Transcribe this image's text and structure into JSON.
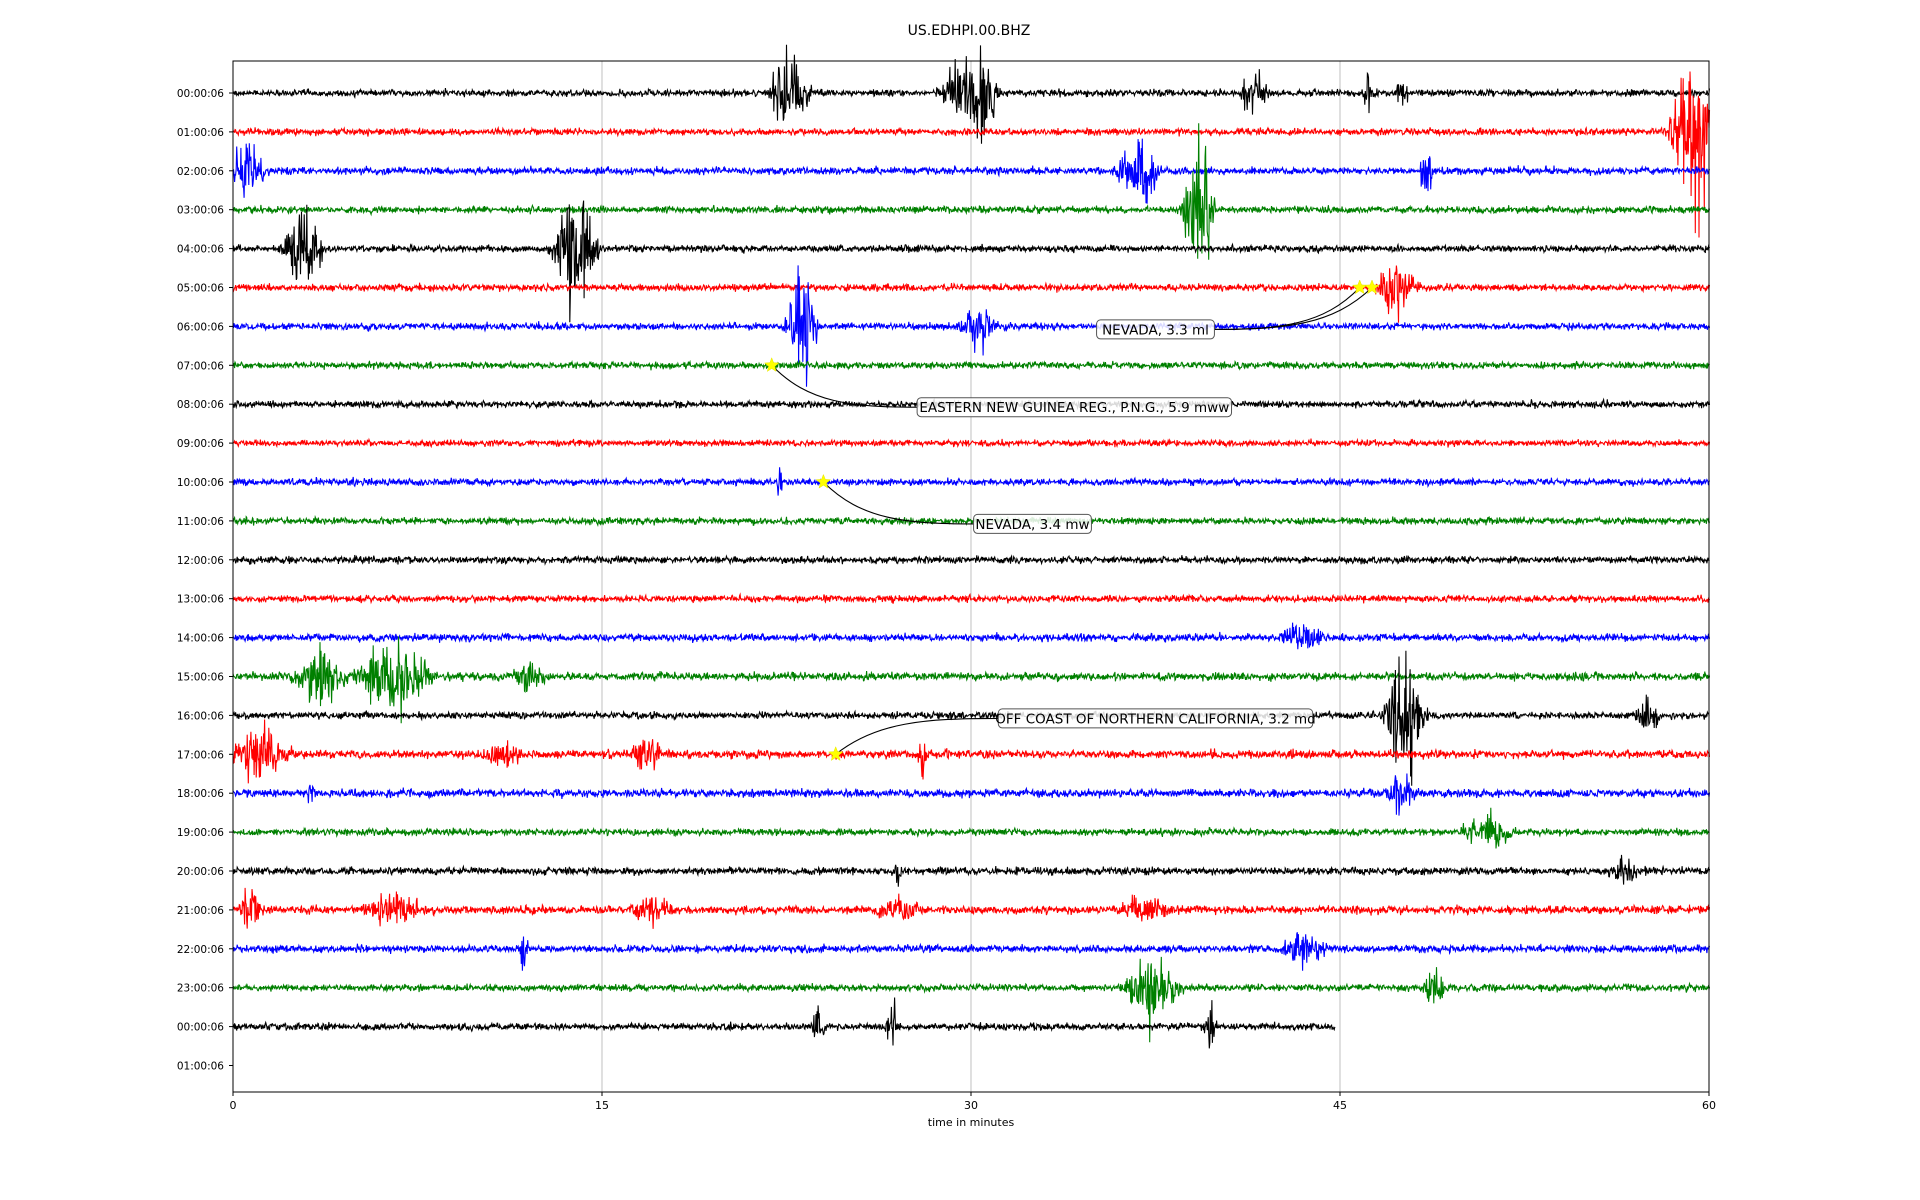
{
  "chart_data": {
    "type": "line",
    "title": "US.EDHPI.00.BHZ",
    "xlabel": "time in minutes",
    "xlim": [
      0,
      60
    ],
    "x_ticks": [
      "0",
      "15",
      "30",
      "45",
      "60"
    ],
    "grid": "vertical lines at 15, 30, 45",
    "colors": [
      "#000000",
      "#ff0000",
      "#0000ff",
      "#008000"
    ],
    "row_labels": [
      "00:00:06",
      "01:00:06",
      "02:00:06",
      "03:00:06",
      "04:00:06",
      "05:00:06",
      "06:00:06",
      "07:00:06",
      "08:00:06",
      "09:00:06",
      "10:00:06",
      "11:00:06",
      "12:00:06",
      "13:00:06",
      "14:00:06",
      "15:00:06",
      "16:00:06",
      "17:00:06",
      "18:00:06",
      "19:00:06",
      "20:00:06",
      "21:00:06",
      "22:00:06",
      "23:00:06",
      "00:00:06",
      "01:00:06"
    ],
    "traces": [
      {
        "row": 0,
        "end_minute": 60,
        "noise": 1.0,
        "bursts": [
          [
            22.6,
            1.2,
            4
          ],
          [
            29.8,
            1.5,
            3.5
          ],
          [
            30.5,
            0.8,
            5
          ],
          [
            41.5,
            0.8,
            2.5
          ],
          [
            46.2,
            0.4,
            2.5
          ],
          [
            47.5,
            0.4,
            2
          ]
        ]
      },
      {
        "row": 1,
        "end_minute": 60,
        "noise": 1.0,
        "bursts": [
          [
            59.4,
            1.2,
            9
          ]
        ]
      },
      {
        "row": 2,
        "end_minute": 60,
        "noise": 1.1,
        "bursts": [
          [
            0.5,
            1.2,
            3
          ],
          [
            36.8,
            1.2,
            4
          ],
          [
            48.5,
            0.4,
            3
          ]
        ]
      },
      {
        "row": 3,
        "end_minute": 60,
        "noise": 1.0,
        "bursts": [
          [
            39.2,
            0.8,
            9
          ]
        ]
      },
      {
        "row": 4,
        "end_minute": 60,
        "noise": 1.0,
        "bursts": [
          [
            2.8,
            1.0,
            6
          ],
          [
            13.9,
            1.2,
            7
          ],
          [
            14.0,
            0.15,
            9
          ]
        ]
      },
      {
        "row": 5,
        "end_minute": 60,
        "noise": 1.0,
        "bursts": [
          [
            47.3,
            1.2,
            3
          ]
        ]
      },
      {
        "row": 6,
        "end_minute": 60,
        "noise": 1.0,
        "bursts": [
          [
            23.1,
            0.8,
            7
          ],
          [
            30.3,
            1.0,
            3
          ]
        ]
      },
      {
        "row": 7,
        "end_minute": 60,
        "noise": 1.0,
        "bursts": []
      },
      {
        "row": 8,
        "end_minute": 60,
        "noise": 1.0,
        "bursts": []
      },
      {
        "row": 9,
        "end_minute": 60,
        "noise": 0.9,
        "bursts": []
      },
      {
        "row": 10,
        "end_minute": 60,
        "noise": 1.0,
        "bursts": [
          [
            22.2,
            0.2,
            2
          ]
        ]
      },
      {
        "row": 11,
        "end_minute": 60,
        "noise": 1.0,
        "bursts": []
      },
      {
        "row": 12,
        "end_minute": 60,
        "noise": 1.0,
        "bursts": []
      },
      {
        "row": 13,
        "end_minute": 60,
        "noise": 1.0,
        "bursts": []
      },
      {
        "row": 14,
        "end_minute": 60,
        "noise": 1.1,
        "bursts": [
          [
            43.5,
            1.5,
            1.6
          ]
        ]
      },
      {
        "row": 15,
        "end_minute": 60,
        "noise": 1.2,
        "bursts": [
          [
            3.5,
            1.5,
            3
          ],
          [
            6.5,
            2.0,
            4.5
          ],
          [
            12.0,
            1.0,
            2
          ]
        ]
      },
      {
        "row": 16,
        "end_minute": 60,
        "noise": 1.0,
        "bursts": [
          [
            47.6,
            1.0,
            7
          ],
          [
            57.5,
            0.8,
            2
          ]
        ]
      },
      {
        "row": 17,
        "end_minute": 60,
        "noise": 1.2,
        "bursts": [
          [
            1.0,
            2.0,
            2.5
          ],
          [
            11.0,
            1.2,
            2
          ],
          [
            16.8,
            1.0,
            2
          ],
          [
            28.0,
            0.3,
            2.5
          ]
        ]
      },
      {
        "row": 18,
        "end_minute": 60,
        "noise": 1.2,
        "bursts": [
          [
            3.1,
            0.3,
            2.5
          ],
          [
            47.5,
            1.0,
            1.8
          ]
        ]
      },
      {
        "row": 19,
        "end_minute": 60,
        "noise": 1.0,
        "bursts": [
          [
            51.0,
            1.5,
            2
          ]
        ]
      },
      {
        "row": 20,
        "end_minute": 60,
        "noise": 1.1,
        "bursts": [
          [
            27.0,
            0.3,
            2
          ],
          [
            56.5,
            1.0,
            1.6
          ]
        ]
      },
      {
        "row": 21,
        "end_minute": 60,
        "noise": 1.2,
        "bursts": [
          [
            0.7,
            0.6,
            3
          ],
          [
            6.5,
            2.0,
            1.8
          ],
          [
            17.0,
            1.5,
            1.6
          ],
          [
            27.0,
            1.5,
            1.6
          ],
          [
            37.0,
            1.8,
            1.6
          ]
        ]
      },
      {
        "row": 22,
        "end_minute": 60,
        "noise": 1.1,
        "bursts": [
          [
            43.5,
            1.5,
            1.8
          ],
          [
            11.8,
            0.3,
            2.5
          ]
        ]
      },
      {
        "row": 23,
        "end_minute": 60,
        "noise": 1.0,
        "bursts": [
          [
            37.3,
            1.5,
            4
          ],
          [
            48.8,
            0.6,
            2.5
          ]
        ]
      },
      {
        "row": 24,
        "end_minute": 44.8,
        "noise": 1.0,
        "bursts": [
          [
            23.8,
            0.4,
            2.5
          ],
          [
            26.8,
            0.4,
            2.5
          ],
          [
            39.7,
            0.4,
            2.5
          ]
        ]
      }
    ],
    "events": [
      {
        "label": "NEVADA, 3.3 ml",
        "row": 5,
        "minute": 45.8
      },
      {
        "label": "NEVADA, 3.3 ml",
        "row": 5,
        "minute": 46.3
      },
      {
        "label": "EASTERN NEW GUINEA REG., P.N.G., 5.9 mww",
        "row": 7,
        "minute": 21.9
      },
      {
        "label": "NEVADA, 3.4 mw",
        "row": 10,
        "minute": 24.0
      },
      {
        "label": "OFF COAST OF NORTHERN CALIFORNIA, 3.2 md",
        "row": 17,
        "minute": 24.5
      }
    ],
    "annotations": [
      {
        "text": "NEVADA, 3.3 ml",
        "near_row": 6,
        "at_minute": 37.5
      },
      {
        "text": "EASTERN NEW GUINEA REG., P.N.G., 5.9 mww",
        "near_row": 8,
        "at_minute": 34.2
      },
      {
        "text": "NEVADA, 3.4 mw",
        "near_row": 11,
        "at_minute": 32.5
      },
      {
        "text": "OFF COAST OF NORTHERN CALIFORNIA, 3.2 md",
        "near_row": 16,
        "at_minute": 37.5
      }
    ]
  }
}
